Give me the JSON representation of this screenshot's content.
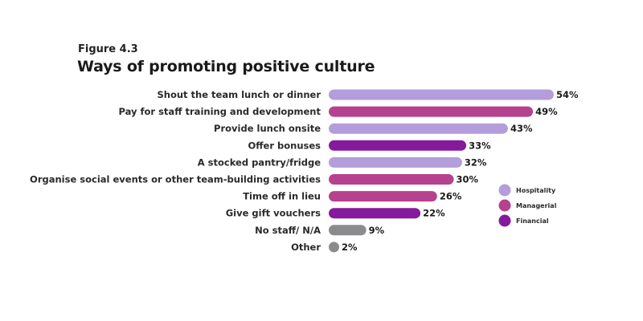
{
  "figure_label": "Figure 4.3",
  "chart_data": {
    "type": "bar",
    "orientation": "horizontal",
    "title": "Ways of promoting positive culture",
    "xlabel": "",
    "ylabel": "",
    "xlim": [
      0,
      54
    ],
    "grid": false,
    "legend_position": "right",
    "value_suffix": "%",
    "categories": [
      "Shout the team lunch or dinner",
      "Pay for staff training and development",
      "Provide lunch onsite",
      "Offer bonuses",
      "A stocked pantry/fridge",
      "Organise social events or other team-building activities",
      "Time off in lieu",
      "Give gift vouchers",
      "No staff/ N/A",
      "Other"
    ],
    "values": [
      54,
      49,
      43,
      33,
      32,
      30,
      26,
      22,
      9,
      2
    ],
    "value_labels": [
      "54%",
      "49%",
      "43%",
      "33%",
      "32%",
      "30%",
      "26%",
      "22%",
      "9%",
      "2%"
    ],
    "groups": [
      "Hospitality",
      "Managerial",
      "Hospitality",
      "Financial",
      "Hospitality",
      "Managerial",
      "Managerial",
      "Financial",
      "None",
      "None"
    ],
    "legend": [
      {
        "name": "Hospitality",
        "color": "#b39ddb"
      },
      {
        "name": "Managerial",
        "color": "#b5418f"
      },
      {
        "name": "Financial",
        "color": "#851a9c"
      }
    ],
    "colors": {
      "Hospitality": "#b39ddb",
      "Managerial": "#b5418f",
      "Financial": "#851a9c",
      "None": "#8b8b8e"
    }
  }
}
